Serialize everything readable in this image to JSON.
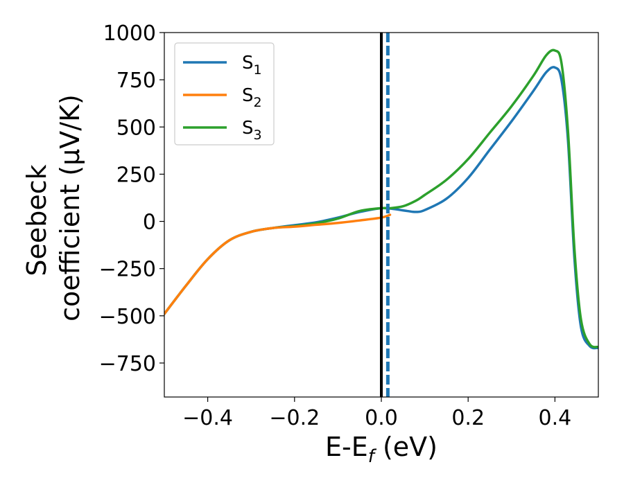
{
  "chart_data": {
    "type": "line",
    "title": "",
    "xlabel": "E-E",
    "xlabel_sub": "f",
    "xlabel_unit": " (eV)",
    "ylabel_line1": "Seebeck",
    "ylabel_line2": "coefficient  (μV/K)",
    "xlim": [
      -0.5,
      0.5
    ],
    "ylim": [
      -930,
      1000
    ],
    "xticks": [
      -0.4,
      -0.2,
      0.0,
      0.2,
      0.4
    ],
    "xtick_labels": [
      "−0.4",
      "−0.2",
      "0.0",
      "0.2",
      "0.4"
    ],
    "yticks": [
      -750,
      -500,
      -250,
      0,
      250,
      500,
      750,
      1000
    ],
    "ytick_labels": [
      "−750",
      "−500",
      "−250",
      "0",
      "250",
      "500",
      "750",
      "1000"
    ],
    "grid": false,
    "legend_position": "top-left",
    "series": [
      {
        "name": "S",
        "sub": "1",
        "color": "#1f77b4",
        "x": [
          -0.5,
          -0.45,
          -0.4,
          -0.35,
          -0.3,
          -0.25,
          -0.2,
          -0.15,
          -0.1,
          -0.05,
          0.0,
          0.03,
          0.06,
          0.08,
          0.1,
          0.15,
          0.2,
          0.25,
          0.3,
          0.35,
          0.38,
          0.4,
          0.415,
          0.43,
          0.445,
          0.46,
          0.48,
          0.5
        ],
        "y": [
          -490,
          -340,
          -200,
          -100,
          -55,
          -35,
          -20,
          -5,
          20,
          50,
          70,
          65,
          55,
          50,
          60,
          120,
          230,
          380,
          530,
          690,
          790,
          815,
          750,
          430,
          -200,
          -560,
          -660,
          -670
        ]
      },
      {
        "name": "S",
        "sub": "2",
        "color": "#ff7f0e",
        "x": [
          -0.5,
          -0.45,
          -0.4,
          -0.35,
          -0.3,
          -0.25,
          -0.2,
          -0.15,
          -0.1,
          -0.05,
          0.0,
          0.02
        ],
        "y": [
          -490,
          -340,
          -200,
          -100,
          -55,
          -35,
          -28,
          -18,
          -8,
          5,
          20,
          35
        ]
      },
      {
        "name": "S",
        "sub": "3",
        "color": "#2ca02c",
        "x": [
          -0.5,
          -0.45,
          -0.4,
          -0.35,
          -0.3,
          -0.25,
          -0.2,
          -0.15,
          -0.1,
          -0.05,
          0.0,
          0.02,
          0.05,
          0.08,
          0.1,
          0.15,
          0.2,
          0.25,
          0.3,
          0.35,
          0.38,
          0.4,
          0.415,
          0.43,
          0.445,
          0.46,
          0.48,
          0.5
        ],
        "y": [
          -490,
          -340,
          -200,
          -100,
          -55,
          -35,
          -25,
          -10,
          15,
          55,
          70,
          70,
          80,
          110,
          140,
          220,
          330,
          470,
          610,
          770,
          880,
          905,
          840,
          480,
          -150,
          -520,
          -650,
          -665
        ]
      }
    ],
    "vlines": [
      {
        "x": 0.0,
        "color": "#000000",
        "style": "solid"
      },
      {
        "x": 0.015,
        "color": "#1f77b4",
        "style": "dashed"
      }
    ]
  }
}
